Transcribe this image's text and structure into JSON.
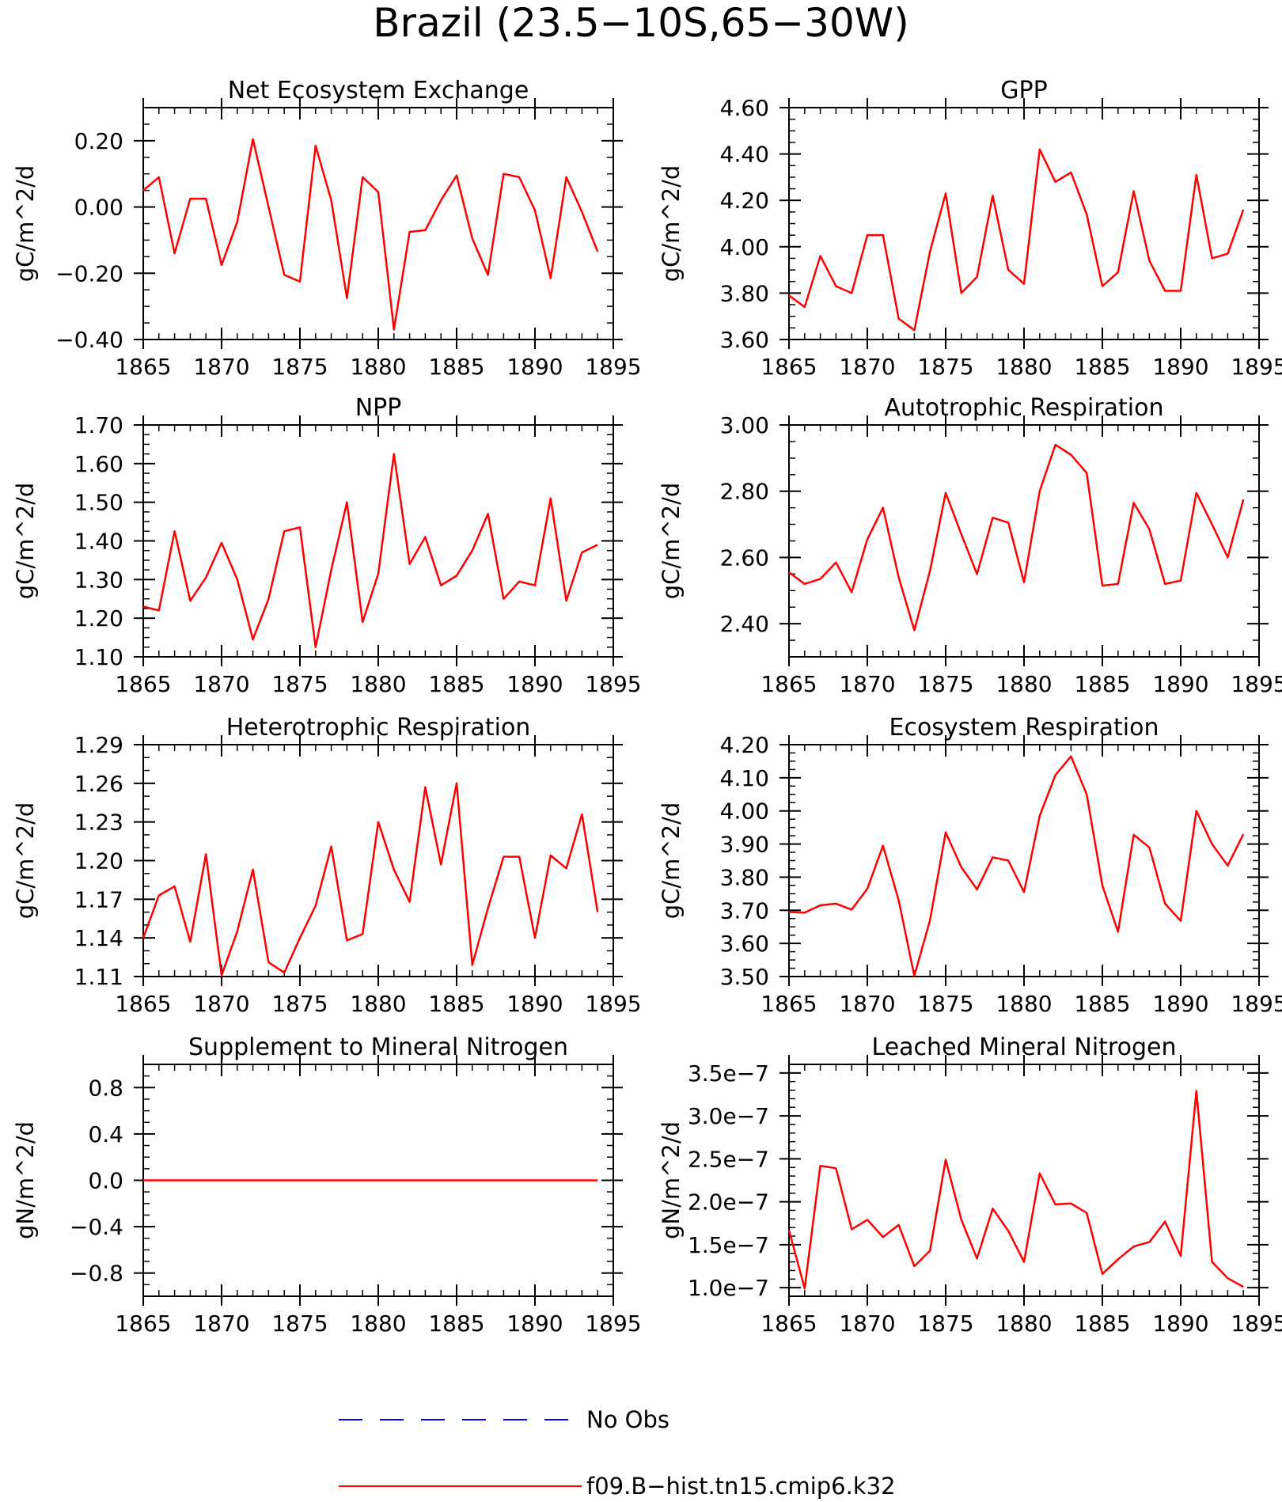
{
  "title": "Brazil (23.5−10S,65−30W)",
  "colors": {
    "model": "#ff0000",
    "obs": "#0000ff",
    "axis": "#000000"
  },
  "legend": {
    "placement": "bottom-center",
    "items": [
      {
        "label": "No Obs",
        "color": "#0000ff",
        "style": "dashed"
      },
      {
        "label": "f09.B−hist.tn15.cmip6.k32",
        "color": "#ff0000",
        "style": "solid"
      }
    ]
  },
  "chart_data": [
    {
      "type": "line",
      "title": "Net Ecosystem Exchange",
      "ylabel": "gC/m^2/d",
      "xlim": [
        1865,
        1895
      ],
      "ylim": [
        -0.4,
        0.3
      ],
      "x_ticks": [
        "1865",
        "1870",
        "1875",
        "1880",
        "1885",
        "1890",
        "1895"
      ],
      "y_ticks": [
        {
          "v": 0.2,
          "label": "0.20"
        },
        {
          "v": 0.0,
          "label": "0.00"
        },
        {
          "v": -0.2,
          "label": "−0.20"
        },
        {
          "v": -0.4,
          "label": "−0.40"
        }
      ],
      "y_minor": 0.05,
      "x": [
        1865,
        1866,
        1867,
        1868,
        1869,
        1870,
        1871,
        1872,
        1873,
        1874,
        1875,
        1876,
        1877,
        1878,
        1879,
        1880,
        1881,
        1882,
        1883,
        1884,
        1885,
        1886,
        1887,
        1888,
        1889,
        1890,
        1891,
        1892,
        1893,
        1894
      ],
      "values": [
        0.05,
        0.09,
        -0.14,
        0.025,
        0.025,
        -0.175,
        -0.045,
        0.205,
        0.0,
        -0.205,
        -0.225,
        0.185,
        0.02,
        -0.275,
        0.09,
        0.045,
        -0.37,
        -0.075,
        -0.07,
        0.02,
        0.095,
        -0.095,
        -0.205,
        0.1,
        0.09,
        -0.01,
        -0.215,
        0.09,
        -0.015,
        -0.135
      ]
    },
    {
      "type": "line",
      "title": "GPP",
      "ylabel": "gC/m^2/d",
      "xlim": [
        1865,
        1895
      ],
      "ylim": [
        3.6,
        4.6
      ],
      "x_ticks": [
        "1865",
        "1870",
        "1875",
        "1880",
        "1885",
        "1890",
        "1895"
      ],
      "y_ticks": [
        {
          "v": 4.6,
          "label": "4.60"
        },
        {
          "v": 4.4,
          "label": "4.40"
        },
        {
          "v": 4.2,
          "label": "4.20"
        },
        {
          "v": 4.0,
          "label": "4.00"
        },
        {
          "v": 3.8,
          "label": "3.80"
        },
        {
          "v": 3.6,
          "label": "3.60"
        }
      ],
      "y_minor": 0.05,
      "x": [
        1865,
        1866,
        1867,
        1868,
        1869,
        1870,
        1871,
        1872,
        1873,
        1874,
        1875,
        1876,
        1877,
        1878,
        1879,
        1880,
        1881,
        1882,
        1883,
        1884,
        1885,
        1886,
        1887,
        1888,
        1889,
        1890,
        1891,
        1892,
        1893,
        1894
      ],
      "values": [
        3.79,
        3.74,
        3.96,
        3.83,
        3.8,
        4.05,
        4.05,
        3.69,
        3.64,
        3.98,
        4.23,
        3.8,
        3.87,
        4.22,
        3.9,
        3.84,
        4.42,
        4.28,
        4.32,
        4.14,
        3.83,
        3.89,
        4.24,
        3.94,
        3.81,
        3.81,
        4.31,
        3.95,
        3.97,
        4.16
      ]
    },
    {
      "type": "line",
      "title": "NPP",
      "ylabel": "gC/m^2/d",
      "xlim": [
        1865,
        1895
      ],
      "ylim": [
        1.1,
        1.7
      ],
      "x_ticks": [
        "1865",
        "1870",
        "1875",
        "1880",
        "1885",
        "1890",
        "1895"
      ],
      "y_ticks": [
        {
          "v": 1.7,
          "label": "1.70"
        },
        {
          "v": 1.6,
          "label": "1.60"
        },
        {
          "v": 1.5,
          "label": "1.50"
        },
        {
          "v": 1.4,
          "label": "1.40"
        },
        {
          "v": 1.3,
          "label": "1.30"
        },
        {
          "v": 1.2,
          "label": "1.20"
        },
        {
          "v": 1.1,
          "label": "1.10"
        }
      ],
      "y_minor": 0.025,
      "x": [
        1865,
        1866,
        1867,
        1868,
        1869,
        1870,
        1871,
        1872,
        1873,
        1874,
        1875,
        1876,
        1877,
        1878,
        1879,
        1880,
        1881,
        1882,
        1883,
        1884,
        1885,
        1886,
        1887,
        1888,
        1889,
        1890,
        1891,
        1892,
        1893,
        1894
      ],
      "values": [
        1.23,
        1.22,
        1.425,
        1.245,
        1.305,
        1.395,
        1.3,
        1.145,
        1.25,
        1.425,
        1.435,
        1.125,
        1.325,
        1.5,
        1.19,
        1.315,
        1.625,
        1.34,
        1.41,
        1.285,
        1.31,
        1.375,
        1.47,
        1.25,
        1.295,
        1.285,
        1.51,
        1.245,
        1.37,
        1.39
      ]
    },
    {
      "type": "line",
      "title": "Autotrophic Respiration",
      "ylabel": "gC/m^2/d",
      "xlim": [
        1865,
        1895
      ],
      "ylim": [
        2.3,
        3.0
      ],
      "x_ticks": [
        "1865",
        "1870",
        "1875",
        "1880",
        "1885",
        "1890",
        "1895"
      ],
      "y_ticks": [
        {
          "v": 3.0,
          "label": "3.00"
        },
        {
          "v": 2.8,
          "label": "2.80"
        },
        {
          "v": 2.6,
          "label": "2.60"
        },
        {
          "v": 2.4,
          "label": "2.40"
        }
      ],
      "y_minor": 0.05,
      "x": [
        1865,
        1866,
        1867,
        1868,
        1869,
        1870,
        1871,
        1872,
        1873,
        1874,
        1875,
        1876,
        1877,
        1878,
        1879,
        1880,
        1881,
        1882,
        1883,
        1884,
        1885,
        1886,
        1887,
        1888,
        1889,
        1890,
        1891,
        1892,
        1893,
        1894
      ],
      "values": [
        2.555,
        2.52,
        2.535,
        2.585,
        2.495,
        2.655,
        2.75,
        2.54,
        2.38,
        2.56,
        2.795,
        2.67,
        2.55,
        2.72,
        2.705,
        2.525,
        2.8,
        2.94,
        2.91,
        2.855,
        2.515,
        2.52,
        2.765,
        2.685,
        2.52,
        2.53,
        2.795,
        2.7,
        2.6,
        2.775
      ]
    },
    {
      "type": "line",
      "title": "Heterotrophic Respiration",
      "ylabel": "gC/m^2/d",
      "xlim": [
        1865,
        1895
      ],
      "ylim": [
        1.11,
        1.29
      ],
      "x_ticks": [
        "1865",
        "1870",
        "1875",
        "1880",
        "1885",
        "1890",
        "1895"
      ],
      "y_ticks": [
        {
          "v": 1.29,
          "label": "1.29"
        },
        {
          "v": 1.26,
          "label": "1.26"
        },
        {
          "v": 1.23,
          "label": "1.23"
        },
        {
          "v": 1.2,
          "label": "1.20"
        },
        {
          "v": 1.17,
          "label": "1.17"
        },
        {
          "v": 1.14,
          "label": "1.14"
        },
        {
          "v": 1.11,
          "label": "1.11"
        }
      ],
      "y_minor": 0.01,
      "x": [
        1865,
        1866,
        1867,
        1868,
        1869,
        1870,
        1871,
        1872,
        1873,
        1874,
        1875,
        1876,
        1877,
        1878,
        1879,
        1880,
        1881,
        1882,
        1883,
        1884,
        1885,
        1886,
        1887,
        1888,
        1889,
        1890,
        1891,
        1892,
        1893,
        1894
      ],
      "values": [
        1.14,
        1.173,
        1.18,
        1.137,
        1.205,
        1.111,
        1.145,
        1.193,
        1.121,
        1.113,
        1.14,
        1.165,
        1.211,
        1.138,
        1.143,
        1.23,
        1.193,
        1.168,
        1.257,
        1.197,
        1.26,
        1.119,
        1.163,
        1.203,
        1.203,
        1.14,
        1.204,
        1.194,
        1.236,
        1.16
      ]
    },
    {
      "type": "line",
      "title": "Ecosystem Respiration",
      "ylabel": "gC/m^2/d",
      "xlim": [
        1865,
        1895
      ],
      "ylim": [
        3.5,
        4.2
      ],
      "x_ticks": [
        "1865",
        "1870",
        "1875",
        "1880",
        "1885",
        "1890",
        "1895"
      ],
      "y_ticks": [
        {
          "v": 4.2,
          "label": "4.20"
        },
        {
          "v": 4.1,
          "label": "4.10"
        },
        {
          "v": 4.0,
          "label": "4.00"
        },
        {
          "v": 3.9,
          "label": "3.90"
        },
        {
          "v": 3.8,
          "label": "3.80"
        },
        {
          "v": 3.7,
          "label": "3.70"
        },
        {
          "v": 3.6,
          "label": "3.60"
        },
        {
          "v": 3.5,
          "label": "3.50"
        }
      ],
      "y_minor": 0.025,
      "x": [
        1865,
        1866,
        1867,
        1868,
        1869,
        1870,
        1871,
        1872,
        1873,
        1874,
        1875,
        1876,
        1877,
        1878,
        1879,
        1880,
        1881,
        1882,
        1883,
        1884,
        1885,
        1886,
        1887,
        1888,
        1889,
        1890,
        1891,
        1892,
        1893,
        1894
      ],
      "values": [
        3.695,
        3.693,
        3.715,
        3.72,
        3.702,
        3.765,
        3.895,
        3.73,
        3.502,
        3.67,
        3.935,
        3.83,
        3.763,
        3.86,
        3.85,
        3.755,
        3.985,
        4.108,
        4.165,
        4.05,
        3.775,
        3.635,
        3.928,
        3.89,
        3.72,
        3.668,
        4.0,
        3.9,
        3.835,
        3.93
      ]
    },
    {
      "type": "line",
      "title": "Supplement to Mineral Nitrogen",
      "ylabel": "gN/m^2/d",
      "xlim": [
        1865,
        1895
      ],
      "ylim": [
        -1.0,
        1.0
      ],
      "x_ticks": [
        "1865",
        "1870",
        "1875",
        "1880",
        "1885",
        "1890",
        "1895"
      ],
      "y_ticks": [
        {
          "v": 0.8,
          "label": "0.8"
        },
        {
          "v": 0.4,
          "label": "0.4"
        },
        {
          "v": 0.0,
          "label": "0.0"
        },
        {
          "v": -0.4,
          "label": "−0.4"
        },
        {
          "v": -0.8,
          "label": "−0.8"
        }
      ],
      "y_minor": 0.1,
      "x": [
        1865,
        1866,
        1867,
        1868,
        1869,
        1870,
        1871,
        1872,
        1873,
        1874,
        1875,
        1876,
        1877,
        1878,
        1879,
        1880,
        1881,
        1882,
        1883,
        1884,
        1885,
        1886,
        1887,
        1888,
        1889,
        1890,
        1891,
        1892,
        1893,
        1894
      ],
      "values": [
        0,
        0,
        0,
        0,
        0,
        0,
        0,
        0,
        0,
        0,
        0,
        0,
        0,
        0,
        0,
        0,
        0,
        0,
        0,
        0,
        0,
        0,
        0,
        0,
        0,
        0,
        0,
        0,
        0,
        0
      ]
    },
    {
      "type": "line",
      "title": "Leached Mineral Nitrogen",
      "ylabel": "gN/m^2/d",
      "xlim": [
        1865,
        1895
      ],
      "ylim": [
        9e-08,
        3.6e-07
      ],
      "x_ticks": [
        "1865",
        "1870",
        "1875",
        "1880",
        "1885",
        "1890",
        "1895"
      ],
      "y_ticks": [
        {
          "v": 3.5e-07,
          "label": "3.5e−7"
        },
        {
          "v": 3e-07,
          "label": "3.0e−7"
        },
        {
          "v": 2.5e-07,
          "label": "2.5e−7"
        },
        {
          "v": 2e-07,
          "label": "2.0e−7"
        },
        {
          "v": 1.5e-07,
          "label": "1.5e−7"
        },
        {
          "v": 1e-07,
          "label": "1.0e−7"
        }
      ],
      "y_minor": 1e-08,
      "x": [
        1865,
        1866,
        1867,
        1868,
        1869,
        1870,
        1871,
        1872,
        1873,
        1874,
        1875,
        1876,
        1877,
        1878,
        1879,
        1880,
        1881,
        1882,
        1883,
        1884,
        1885,
        1886,
        1887,
        1888,
        1889,
        1890,
        1891,
        1892,
        1893,
        1894
      ],
      "values": [
        1.67e-07,
        9.9e-08,
        2.42e-07,
        2.39e-07,
        1.68e-07,
        1.79e-07,
        1.59e-07,
        1.73e-07,
        1.25e-07,
        1.43e-07,
        2.49e-07,
        1.79e-07,
        1.34e-07,
        1.92e-07,
        1.66e-07,
        1.3e-07,
        2.33e-07,
        1.97e-07,
        1.98e-07,
        1.87e-07,
        1.16e-07,
        1.33e-07,
        1.48e-07,
        1.53e-07,
        1.77e-07,
        1.37e-07,
        3.29e-07,
        1.3e-07,
        1.11e-07,
        1.01e-07
      ]
    }
  ]
}
